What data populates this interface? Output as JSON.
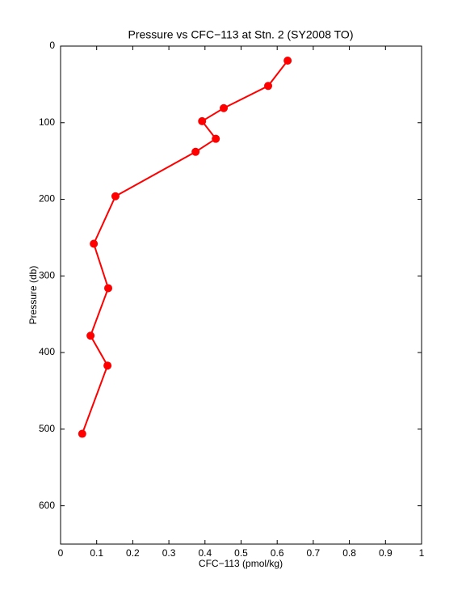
{
  "chart_data": {
    "type": "line",
    "title": "Pressure vs CFC−113 at Stn. 2 (SY2008 TO)",
    "x_label": "CFC−113 (pmol/kg)",
    "y_label": "Pressure (db)",
    "x": [
      0.629,
      0.575,
      0.452,
      0.392,
      0.43,
      0.374,
      0.152,
      0.092,
      0.132,
      0.083,
      0.13,
      0.06
    ],
    "series": [
      {
        "color": "#ff0000",
        "values": [
          19,
          52,
          81,
          98,
          121,
          138,
          196,
          258,
          316,
          378,
          417,
          506
        ]
      }
    ],
    "xlim": [
      0,
      1
    ],
    "xticks": [
      0,
      0.1,
      0.2,
      0.3,
      0.4,
      0.5,
      0.6,
      0.7,
      0.8,
      0.9,
      1
    ],
    "ylim": [
      0,
      650
    ],
    "yticks": [
      0,
      100,
      200,
      300,
      400,
      500,
      600
    ],
    "y_inverted": true,
    "grid": false,
    "markers": true
  }
}
